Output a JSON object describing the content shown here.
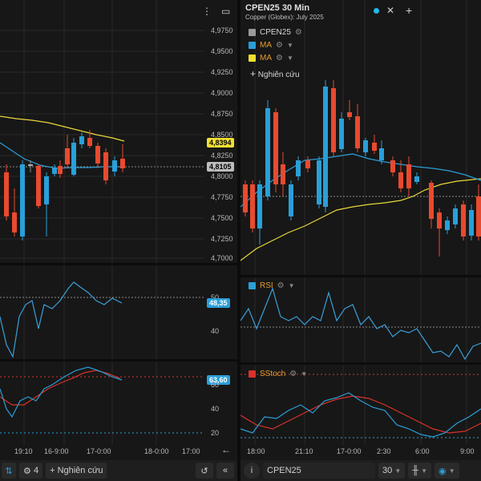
{
  "right_header": {
    "title": "CPEN25 30 Min",
    "subtitle": "Copper (Globex): July 2025",
    "legend": [
      {
        "label": "CPEN25",
        "color": "#9a9a9a",
        "label_color": "#d8d8d8"
      },
      {
        "label": "MA",
        "color": "#2a9fd8",
        "label_color": "#e89a2a"
      },
      {
        "label": "MA",
        "color": "#f0e030",
        "label_color": "#e89a2a"
      }
    ],
    "study_button": "Nghiên cứu",
    "rsi_label": "RSI",
    "sstoch_label": "SStoch"
  },
  "left_axis": {
    "price_ticks": [
      "4,9750",
      "4,9500",
      "4,9250",
      "4,9000",
      "4,8750",
      "4,8500",
      "4,8250",
      "4,8000",
      "4,7750",
      "4,7500",
      "4,7250",
      "4,7000"
    ],
    "rsi_ticks": [
      "50",
      "40"
    ],
    "stoch_ticks": [
      "60",
      "40",
      "20"
    ],
    "ma_tag": "4,8394",
    "last_tag": "4,8105",
    "rsi_tag": "48,35",
    "stoch_tag": "63,60",
    "time_ticks": [
      "19:10",
      "16-9:00",
      "17-0:00",
      "18-0:00",
      "17:00"
    ]
  },
  "right_axis": {
    "time_ticks": [
      "18:00",
      "21:10",
      "17-0:00",
      "2:30",
      "6:00",
      "9:00"
    ]
  },
  "bottom_left": {
    "count": "4",
    "study_button": "Nghiên cứu"
  },
  "bottom_right": {
    "symbol": "CPEN25",
    "interval": "30"
  },
  "icons": {
    "menu": "kebab-menu-icon",
    "maximize": "maximize-icon",
    "close": "close-icon",
    "add": "plus-icon",
    "undo": "undo-icon",
    "collapse": "double-chevron-left-icon",
    "info": "info-icon",
    "back": "arrow-left-icon"
  },
  "colors": {
    "up": "#2a9fd8",
    "down": "#e84a2f",
    "ma1": "#2a9fd8",
    "ma2": "#e8d83a",
    "rsi": "#3a9fd8",
    "stoch_k": "#2a9fd8",
    "stoch_d": "#d8322a"
  }
}
